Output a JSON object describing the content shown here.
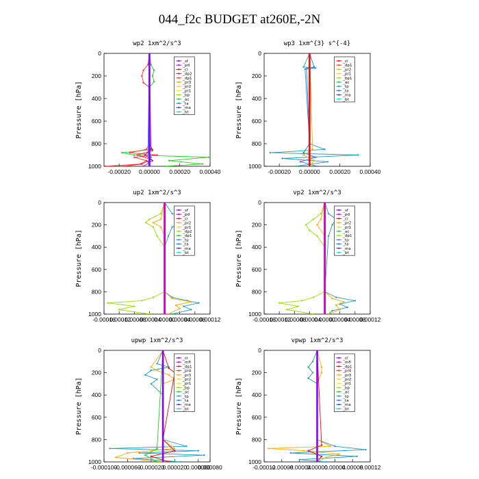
{
  "figure_title": "044_f2c  BUDGET at260E,-2N",
  "chart_data": [
    {
      "type": "line",
      "title": "wp2",
      "units": "1xm^2/s^3",
      "ylabel": "Pressure [hPa]",
      "ylim": [
        1000,
        0
      ],
      "yticks": [
        "0",
        "200",
        "400",
        "600",
        "800",
        "1000"
      ],
      "xlim": [
        -0.0003,
        0.0004
      ],
      "xticks": [
        "-0.00020",
        "0.00000",
        "0.00020",
        "0.00040"
      ],
      "xtick_values": [
        -0.0002,
        0,
        0.0002,
        0.0004
      ],
      "legend": [
        "_sf",
        "_pd",
        "_cl",
        "_dp2",
        "_dp1",
        "_pr3",
        "_pr2",
        "_pr1",
        "_bp",
        "_ac",
        "_ta",
        "_ma",
        "_bt"
      ],
      "legend_colors": [
        "#8800ff",
        "#cc00cc",
        "#ff0000",
        "#dd2222",
        "#ff3333",
        "#ffaa00",
        "#ffcc33",
        "#ffdd44",
        "#99dd00",
        "#22cc22",
        "#2277ff",
        "#3344aa",
        "#00dddd"
      ],
      "series": [
        {
          "name": "_ac",
          "color": "#22cc22",
          "p": [
            0,
            100,
            150,
            200,
            250,
            300,
            800,
            850,
            880,
            900,
            920,
            950,
            980,
            1000
          ],
          "v": [
            0,
            1e-05,
            3e-05,
            2e-05,
            3e-05,
            0,
            0,
            2e-05,
            -0.00018,
            -0.0001,
            0.00039,
            0.00013,
            0.00035,
            0.0001
          ]
        },
        {
          "name": "_pr1",
          "color": "#ff3333",
          "p": [
            0,
            100,
            150,
            200,
            260,
            300,
            800,
            850,
            880,
            900,
            920,
            950,
            980,
            1000
          ],
          "v": [
            0,
            -1e-05,
            -4e-05,
            -5e-05,
            -4e-05,
            0,
            0,
            -2e-05,
            -0.00013,
            5e-05,
            -0.0001,
            -2e-05,
            -6e-05,
            -0.00029
          ]
        },
        {
          "name": "_dp1",
          "color": "#dd2222",
          "p": [
            0,
            800,
            860,
            900,
            940,
            980,
            1000
          ],
          "v": [
            0,
            0,
            2e-05,
            -8e-05,
            1e-05,
            -5e-05,
            -0.00017
          ]
        },
        {
          "name": "_pd",
          "color": "#cc00cc",
          "p": [
            0,
            850,
            900,
            950,
            1000
          ],
          "v": [
            0,
            1e-05,
            -3e-05,
            2e-05,
            -4e-05
          ]
        },
        {
          "name": "_bt",
          "color": "#00dddd",
          "p": [
            0,
            1000
          ],
          "v": [
            0,
            0
          ]
        },
        {
          "name": "_ta",
          "color": "#2277ff",
          "p": [
            0,
            880,
            920,
            960,
            1000
          ],
          "v": [
            0,
            -1e-05,
            1e-05,
            -1e-05,
            0
          ]
        },
        {
          "name": "_sf",
          "color": "#8800ff",
          "p": [
            0,
            1000
          ],
          "v": [
            0,
            0
          ]
        }
      ]
    },
    {
      "type": "line",
      "title": "wp3",
      "units": "1xm^{3} s^{-4}",
      "ylabel": "Pressure [hPa]",
      "ylim": [
        1000,
        0
      ],
      "yticks": [
        "0",
        "200",
        "400",
        "600",
        "800",
        "1000"
      ],
      "xlim": [
        -0.0003,
        0.0004
      ],
      "xticks": [
        "-0.00020",
        "0.00000",
        "0.00020",
        "0.00040"
      ],
      "xtick_values": [
        -0.0002,
        0,
        0.0002,
        0.0004
      ],
      "legend": [
        "_cl",
        "_dp1",
        "_pr2",
        "_pr1",
        "_bp1",
        "_ac",
        "_tp",
        "_ta",
        "_ma",
        "_bt"
      ],
      "legend_colors": [
        "#ff0000",
        "#ff3333",
        "#ffaa00",
        "#ffcc33",
        "#99dd00",
        "#22cc22",
        "#2299bb",
        "#2277ff",
        "#3344aa",
        "#00dddd"
      ],
      "series": [
        {
          "name": "_tp",
          "color": "#2299bb",
          "p": [
            0,
            120,
            130,
            140,
            800,
            850,
            880,
            900,
            930,
            960,
            1000
          ],
          "v": [
            0,
            -4e-05,
            4e-05,
            -3e-05,
            0,
            0.0001,
            -0.00026,
            0.00032,
            -0.00018,
            0.00012,
            -9e-05
          ]
        },
        {
          "name": "_ta",
          "color": "#2277ff",
          "p": [
            0,
            120,
            135,
            800,
            880,
            920,
            960,
            1000
          ],
          "v": [
            0,
            3e-05,
            -2e-05,
            0,
            -4e-05,
            4e-05,
            -6e-05,
            5e-05
          ]
        },
        {
          "name": "_pr2",
          "color": "#ffaa00",
          "p": [
            0,
            850,
            900,
            950,
            1000
          ],
          "v": [
            0,
            2e-05,
            -4e-05,
            3e-05,
            0
          ]
        },
        {
          "name": "_cl",
          "color": "#ff0000",
          "p": [
            0,
            1000
          ],
          "v": [
            0,
            0
          ]
        }
      ]
    },
    {
      "type": "line",
      "title": "up2",
      "units": "1xm^2/s^3",
      "ylabel": "Pressure [hPa]",
      "ylim": [
        1000,
        0
      ],
      "yticks": [
        "0",
        "200",
        "400",
        "600",
        "800",
        "1000"
      ],
      "xlim": [
        -0.00016,
        0.00012
      ],
      "xticks": [
        "-0.00016",
        "-0.00012",
        "-0.00008",
        "-0.00004",
        "0.00000",
        "0.00004",
        "0.00008",
        "0.00012"
      ],
      "xtick_values": [
        -0.00016,
        -0.00012,
        -8e-05,
        -4e-05,
        0,
        4e-05,
        8e-05,
        0.00012
      ],
      "legend": [
        "_sf",
        "_pd",
        "_cl",
        "_pr2",
        "_pr1",
        "_dp2",
        "_dp1",
        "_tp",
        "_ta",
        "_ma",
        "_bt"
      ],
      "legend_colors": [
        "#8800ff",
        "#cc00cc",
        "#ff0000",
        "#ffaa00",
        "#ffcc33",
        "#99dd00",
        "#22cc22",
        "#2299bb",
        "#2277ff",
        "#3344aa",
        "#00dddd"
      ],
      "series": [
        {
          "name": "_dp2",
          "color": "#99dd00",
          "p": [
            0,
            100,
            150,
            180,
            220,
            300,
            400,
            800,
            850,
            880,
            900,
            930,
            960,
            1000
          ],
          "v": [
            0,
            -1e-05,
            -4e-05,
            -5e-05,
            -3e-05,
            -2e-05,
            0,
            0,
            -3e-05,
            -6e-05,
            -0.00015,
            -8e-05,
            -0.00012,
            -4e-05
          ]
        },
        {
          "name": "_tp",
          "color": "#2299bb",
          "p": [
            0,
            100,
            150,
            180,
            220,
            300,
            400,
            800,
            850,
            880,
            900,
            930,
            960,
            1000
          ],
          "v": [
            0,
            2e-05,
            6e-05,
            4e-05,
            2e-05,
            1e-05,
            0,
            0,
            2e-05,
            6e-05,
            9e-05,
            5e-05,
            7e-05,
            2e-05
          ]
        },
        {
          "name": "_pr2",
          "color": "#ffaa00",
          "p": [
            0,
            150,
            180,
            220,
            300,
            800,
            860,
            890,
            920,
            950,
            1000
          ],
          "v": [
            0,
            -1e-05,
            -3e-05,
            -1e-05,
            0,
            0,
            2e-05,
            7e-05,
            3e-05,
            4e-05,
            1e-05
          ]
        },
        {
          "name": "_cl",
          "color": "#ff0000",
          "p": [
            0,
            1000
          ],
          "v": [
            0,
            0
          ]
        },
        {
          "name": "_pd",
          "color": "#cc00cc",
          "p": [
            0,
            1000
          ],
          "v": [
            0,
            0
          ]
        }
      ]
    },
    {
      "type": "line",
      "title": "vp2",
      "units": "1xm^2/s^3",
      "ylabel": "Pressure [hPa]",
      "ylim": [
        1000,
        0
      ],
      "yticks": [
        "0",
        "200",
        "400",
        "600",
        "800",
        "1000"
      ],
      "xlim": [
        -0.00016,
        0.00012
      ],
      "xticks": [
        "-0.00016",
        "-0.00012",
        "-0.00008",
        "-0.00004",
        "0.00000",
        "0.00004",
        "0.00008",
        "0.00012"
      ],
      "xtick_values": [
        -0.00016,
        -0.00012,
        -8e-05,
        -4e-05,
        0,
        4e-05,
        8e-05,
        0.00012
      ],
      "legend": [
        "_sf",
        "_pd",
        "_cl",
        "_pr2",
        "_pr1",
        "_ac",
        "_dp1",
        "_tp",
        "_ta",
        "_ma",
        "_bt"
      ],
      "legend_colors": [
        "#8800ff",
        "#cc00cc",
        "#ff0000",
        "#ffaa00",
        "#ffcc33",
        "#22cc22",
        "#99dd00",
        "#2299bb",
        "#2277ff",
        "#3344aa",
        "#00dddd"
      ],
      "series": [
        {
          "name": "_dp1",
          "color": "#99dd00",
          "p": [
            0,
            100,
            150,
            200,
            250,
            300,
            400,
            800,
            850,
            880,
            900,
            930,
            960,
            1000
          ],
          "v": [
            0,
            -1e-05,
            -3e-05,
            -5e-05,
            -4e-05,
            -2e-05,
            0,
            0,
            -3e-05,
            -6e-05,
            -0.00012,
            -7e-05,
            -0.0001,
            -3e-05
          ]
        },
        {
          "name": "_tp",
          "color": "#2299bb",
          "p": [
            0,
            100,
            150,
            200,
            300,
            800,
            850,
            880,
            910,
            940,
            970,
            1000
          ],
          "v": [
            0,
            1e-05,
            3e-05,
            2e-05,
            1e-05,
            0,
            3e-05,
            8e-05,
            4e-05,
            6e-05,
            2e-05,
            1e-05
          ]
        },
        {
          "name": "_pr2",
          "color": "#ffaa00",
          "p": [
            0,
            150,
            200,
            300,
            800,
            860,
            890,
            920,
            960,
            1000
          ],
          "v": [
            0,
            -1e-05,
            -2e-05,
            0,
            0,
            2e-05,
            5e-05,
            3e-05,
            4e-05,
            1e-05
          ]
        },
        {
          "name": "_cl",
          "color": "#ff0000",
          "p": [
            0,
            1000
          ],
          "v": [
            0,
            0
          ]
        },
        {
          "name": "_pd",
          "color": "#cc00cc",
          "p": [
            0,
            1000
          ],
          "v": [
            0,
            0
          ]
        }
      ]
    },
    {
      "type": "line",
      "title": "upwp",
      "units": "1xm^2/s^3",
      "ylabel": "Pressure [hPa]",
      "ylim": [
        1000,
        0
      ],
      "yticks": [
        "0",
        "200",
        "400",
        "600",
        "800",
        "1000"
      ],
      "xlim": [
        -0.0001,
        8e-05
      ],
      "xticks": [
        "-0.000100",
        "-0.000060",
        "-0.000020",
        "0.000020",
        "0.000060",
        "0.000080"
      ],
      "xtick_values": [
        -0.0001,
        -6e-05,
        -2e-05,
        2e-05,
        6e-05,
        8e-05
      ],
      "legend": [
        "_cl",
        "_mfl",
        "_dp1",
        "_pr4",
        "_pr3",
        "_pr2",
        "_pr1",
        "_bp",
        "_ac",
        "_tp",
        "_ta",
        "_ma",
        "_bt"
      ],
      "legend_colors": [
        "#8800ff",
        "#cc00cc",
        "#ff0000",
        "#ff3333",
        "#ffaa00",
        "#ffcc33",
        "#ffdd44",
        "#99dd00",
        "#22cc22",
        "#2299bb",
        "#2277ff",
        "#3344aa",
        "#00dddd"
      ],
      "series": [
        {
          "name": "_tp",
          "color": "#2299bb",
          "p": [
            0,
            120,
            150,
            180,
            220,
            260,
            300,
            400,
            800,
            860,
            880,
            900,
            920,
            940,
            970,
            1000
          ],
          "v": [
            0,
            -1e-05,
            1e-05,
            -2e-05,
            -3e-05,
            -1e-05,
            -2e-05,
            0,
            0,
            4e-05,
            -9e-05,
            6e-05,
            -4e-05,
            7e-05,
            -5e-05,
            3e-05
          ]
        },
        {
          "name": "_pr2",
          "color": "#ffaa00",
          "p": [
            0,
            150,
            180,
            220,
            260,
            300,
            800,
            880,
            920,
            960,
            1000
          ],
          "v": [
            0,
            -2e-05,
            -1e-05,
            1e-05,
            2e-05,
            0,
            0,
            2e-05,
            -6e-05,
            -8e-05,
            0
          ]
        },
        {
          "name": "_dp1",
          "color": "#ff0000",
          "p": [
            0,
            160,
            200,
            800,
            900,
            950,
            1000
          ],
          "v": [
            0,
            1e-05,
            2e-05,
            0,
            2e-05,
            -2e-05,
            1e-05
          ]
        },
        {
          "name": "_ac",
          "color": "#22cc22",
          "p": [
            0,
            880,
            940,
            1000
          ],
          "v": [
            0,
            -1e-05,
            -3e-05,
            -1e-05
          ]
        },
        {
          "name": "_cl",
          "color": "#8800ff",
          "p": [
            0,
            1000
          ],
          "v": [
            0,
            0
          ]
        }
      ]
    },
    {
      "type": "line",
      "title": "vpwp",
      "units": "1xm^2/s^3",
      "ylabel": "Pressure [hPa]",
      "ylim": [
        1000,
        0
      ],
      "yticks": [
        "0",
        "200",
        "400",
        "600",
        "800",
        "1000"
      ],
      "xlim": [
        -0.00012,
        0.00012
      ],
      "xticks": [
        "-0.00012",
        "-0.00008",
        "-0.00004",
        "0.00000",
        "0.00004",
        "0.00008",
        "0.00012"
      ],
      "xtick_values": [
        -0.00012,
        -8e-05,
        -4e-05,
        0,
        4e-05,
        8e-05,
        0.00012
      ],
      "legend": [
        "_cl",
        "_mfl",
        "_dp1",
        "_pr4",
        "_pr3",
        "_pr2",
        "_pr1",
        "_bp",
        "_ac",
        "_tp",
        "_ta",
        "_ma",
        "_bt"
      ],
      "legend_colors": [
        "#8800ff",
        "#cc00cc",
        "#ff0000",
        "#ff3333",
        "#ffaa00",
        "#ffcc33",
        "#ffdd44",
        "#99dd00",
        "#22cc22",
        "#2299bb",
        "#2277ff",
        "#3344aa",
        "#00dddd"
      ],
      "series": [
        {
          "name": "_tp",
          "color": "#2299bb",
          "p": [
            0,
            100,
            150,
            200,
            250,
            300,
            400,
            800,
            860,
            890,
            920,
            950,
            980,
            1000
          ],
          "v": [
            0,
            -1e-05,
            -2e-05,
            -1e-05,
            -2e-05,
            0,
            0,
            0,
            4e-05,
            0.00011,
            -6e-05,
            9e-05,
            -4e-05,
            2e-05
          ]
        },
        {
          "name": "_pr2",
          "color": "#ffaa00",
          "p": [
            0,
            150,
            200,
            300,
            800,
            860,
            880,
            900,
            930,
            960,
            1000
          ],
          "v": [
            0,
            1e-05,
            1e-05,
            0,
            0,
            3e-05,
            -0.00011,
            -3e-05,
            5e-05,
            2e-05,
            0
          ]
        },
        {
          "name": "_dp1",
          "color": "#ff0000",
          "p": [
            0,
            850,
            900,
            950,
            1000
          ],
          "v": [
            0,
            1e-05,
            -2e-05,
            1e-05,
            0
          ]
        },
        {
          "name": "_cl",
          "color": "#8800ff",
          "p": [
            0,
            1000
          ],
          "v": [
            0,
            0
          ]
        }
      ]
    }
  ]
}
